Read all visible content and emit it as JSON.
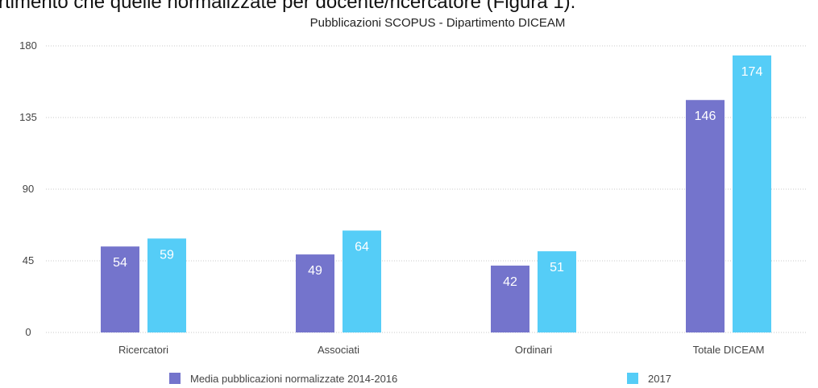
{
  "page_text": "rtimento che quelle normalizzate per docente/ricercatore (Figura 1).",
  "chart_data": {
    "type": "bar",
    "title": "Pubblicazioni SCOPUS - Dipartimento DICEAM",
    "categories": [
      "Ricercatori",
      "Associati",
      "Ordinari",
      "Totale DICEAM"
    ],
    "series": [
      {
        "name": "Media pubblicazioni normalizzate 2014-2016",
        "color": "#7474cc",
        "values": [
          54,
          49,
          42,
          146
        ]
      },
      {
        "name": "2017",
        "color": "#55cdf7",
        "values": [
          59,
          64,
          51,
          174
        ]
      }
    ],
    "ylim": [
      0,
      180
    ],
    "yticks": [
      0,
      45,
      90,
      135,
      180
    ],
    "grid": true,
    "legend": "bottom"
  }
}
